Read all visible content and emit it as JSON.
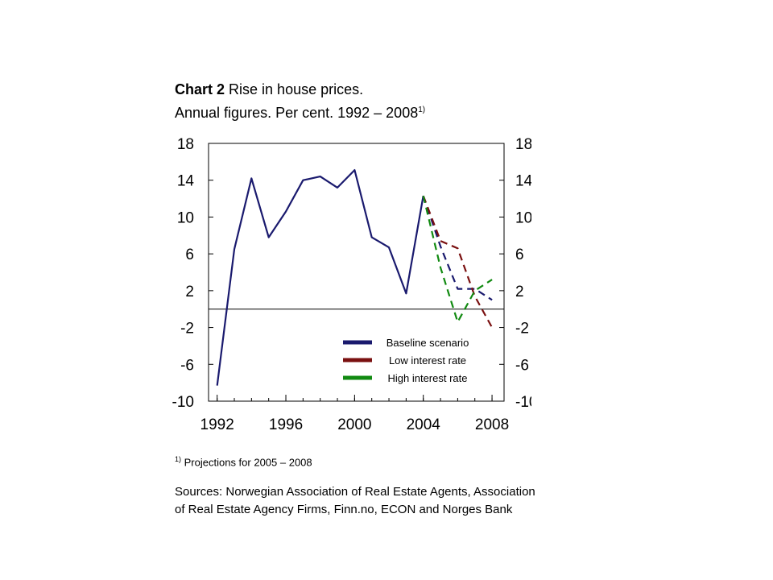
{
  "title": {
    "bold": "Chart 2",
    "rest": "Rise in house prices.",
    "line2": "Annual figures. Per cent. 1992 – 2008",
    "marker": "1)"
  },
  "footnote": {
    "marker": "1)",
    "text": "Projections for 2005 – 2008"
  },
  "sources": "Sources: Norwegian Association of Real Estate Agents, Association of Real Estate Agency Firms, Finn.no, ECON and Norges Bank",
  "chart_data": {
    "type": "line",
    "title": "Rise in house prices",
    "xlabel": "",
    "ylabel": "",
    "xlim": [
      1991.5,
      2008.7
    ],
    "ylim": [
      -10,
      18
    ],
    "x_ticks": [
      1992,
      1996,
      2000,
      2004,
      2008
    ],
    "x_minor_ticks": [
      1992,
      1993,
      1994,
      1995,
      1996,
      1997,
      1998,
      1999,
      2000,
      2001,
      2002,
      2003,
      2004,
      2005,
      2006,
      2007,
      2008
    ],
    "y_ticks": [
      18,
      14,
      10,
      6,
      2,
      -2,
      -6,
      -10
    ],
    "zero_line": 0,
    "grid": false,
    "legend_position": "bottom-right",
    "series": [
      {
        "name": "",
        "color": "#1a1a6e",
        "style": "solid",
        "x": [
          1992,
          1993,
          1994,
          1995,
          1996,
          1997,
          1998,
          1999,
          2000,
          2001,
          2002,
          2003,
          2004
        ],
        "values": [
          -8.3,
          6.5,
          14.2,
          7.8,
          10.6,
          14.0,
          14.4,
          13.2,
          15.1,
          7.8,
          6.7,
          1.7,
          12.3
        ]
      },
      {
        "name": "Baseline scenario",
        "color": "#1a1a6e",
        "style": "dashed",
        "x": [
          2004,
          2005,
          2006,
          2007,
          2008
        ],
        "values": [
          12.3,
          6.8,
          2.2,
          2.2,
          1.0
        ]
      },
      {
        "name": "Low interest rate",
        "color": "#7a1010",
        "style": "dashed",
        "x": [
          2004,
          2005,
          2006,
          2007,
          2008
        ],
        "values": [
          12.3,
          7.4,
          6.6,
          1.4,
          -2.0
        ]
      },
      {
        "name": "High interest rate",
        "color": "#118a11",
        "style": "dashed",
        "x": [
          2004,
          2005,
          2006,
          2007,
          2008
        ],
        "values": [
          12.3,
          4.5,
          -1.4,
          2.0,
          3.2
        ]
      }
    ]
  }
}
